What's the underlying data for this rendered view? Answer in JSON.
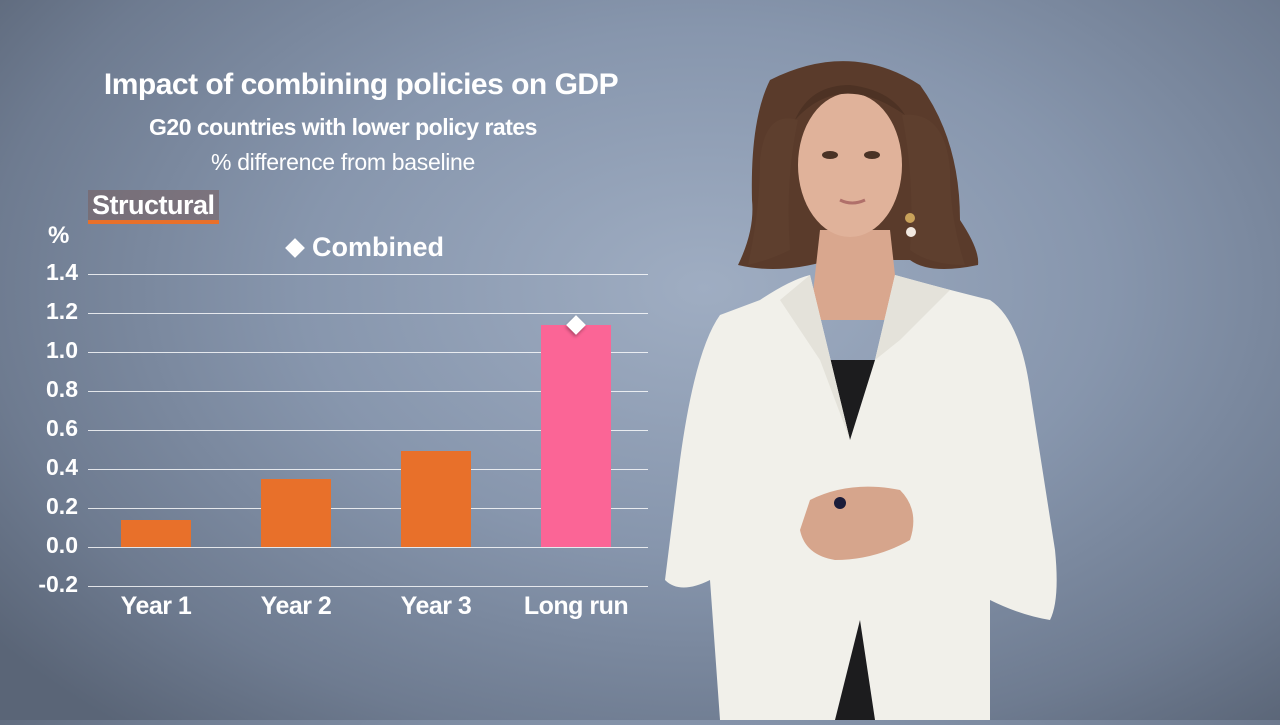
{
  "slide": {
    "title": "Impact of combining policies on GDP",
    "subtitle": "G20 countries with lower policy rates",
    "unit_line": "% difference from baseline",
    "tag": "Structural",
    "y_unit": "%",
    "legend": [
      {
        "label": "Combined",
        "marker": "diamond-icon",
        "color": "#ffffff"
      }
    ]
  },
  "colors": {
    "bar_structural": "#e8702a",
    "bar_long_run": "#fb6596",
    "marker": "#ffffff",
    "tag_underline": "#e8702a"
  },
  "chart_data": {
    "type": "bar",
    "title": "Impact of combining policies on GDP",
    "subtitle": "G20 countries with lower policy rates — % difference from baseline",
    "xlabel": "",
    "ylabel": "%",
    "ylim": [
      -0.2,
      1.4
    ],
    "yticks": [
      "1.4",
      "1.2",
      "1.0",
      "0.8",
      "0.6",
      "0.4",
      "0.2",
      "0.0",
      "-0.2"
    ],
    "grid": true,
    "categories": [
      "Year 1",
      "Year 2",
      "Year 3",
      "Long run"
    ],
    "series": [
      {
        "name": "Structural",
        "type": "bar",
        "values": [
          0.14,
          0.35,
          0.49,
          1.14
        ],
        "colors": [
          "#e8702a",
          "#e8702a",
          "#e8702a",
          "#fb6596"
        ]
      },
      {
        "name": "Combined",
        "type": "marker",
        "marker": "diamond",
        "values": [
          null,
          null,
          null,
          1.14
        ]
      }
    ],
    "legend_position": "top"
  }
}
